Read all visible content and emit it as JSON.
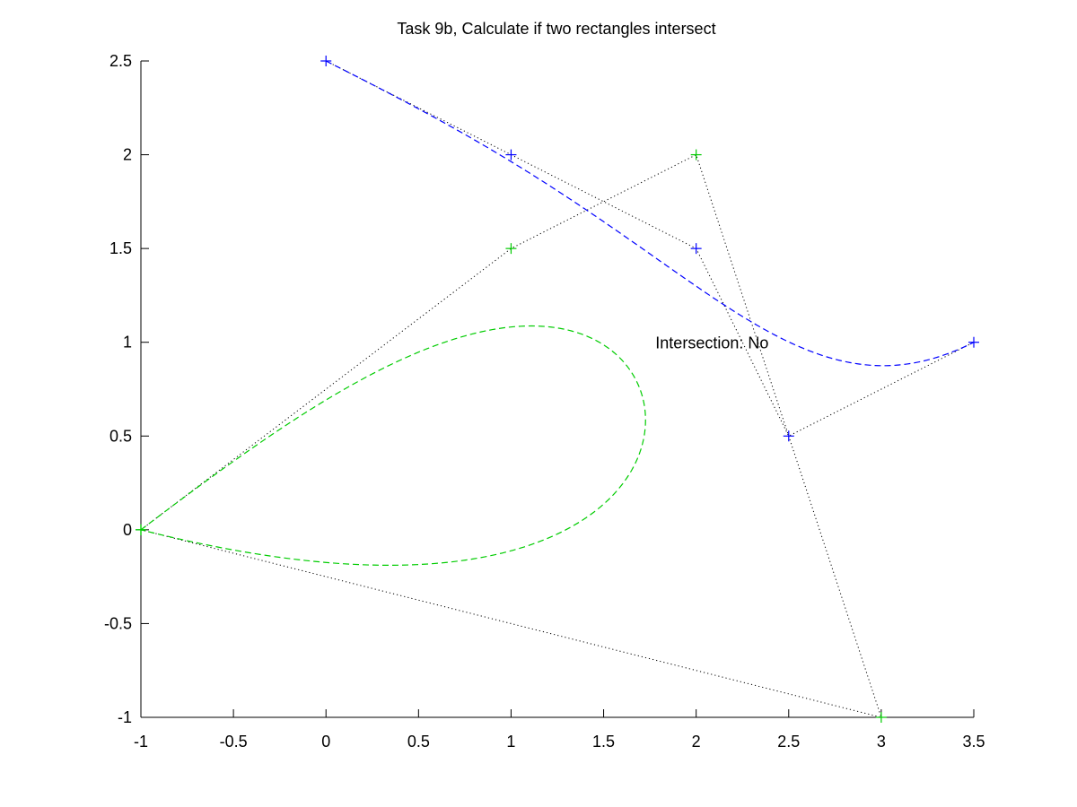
{
  "chart_data": {
    "type": "line",
    "title": "Task 9b, Calculate if two rectangles intersect",
    "xlabel": "",
    "ylabel": "",
    "xlim": [
      -1,
      3.5
    ],
    "ylim": [
      -1,
      2.5
    ],
    "xticks": [
      -1,
      -0.5,
      0,
      0.5,
      1,
      1.5,
      2,
      2.5,
      3,
      3.5
    ],
    "yticks": [
      -1,
      -0.5,
      0,
      0.5,
      1,
      1.5,
      2,
      2.5
    ],
    "xtick_labels": [
      "-1",
      "-0.5",
      "0",
      "0.5",
      "1",
      "1.5",
      "2",
      "2.5",
      "3",
      "3.5"
    ],
    "ytick_labels": [
      "-1",
      "-0.5",
      "0",
      "0.5",
      "1",
      "1.5",
      "2",
      "2.5"
    ],
    "grid": false,
    "series": [
      {
        "color": "#0000ff",
        "control_points": [
          [
            0,
            2.5
          ],
          [
            1,
            2
          ],
          [
            2,
            1.5
          ],
          [
            2.5,
            0.5
          ],
          [
            3.5,
            1
          ]
        ],
        "curve": "bezier",
        "curve_style": "dashed",
        "polygon_style": "dotted",
        "marker": "+"
      },
      {
        "color": "#00cc00",
        "control_points": [
          [
            -1,
            0
          ],
          [
            1,
            1.5
          ],
          [
            2,
            2
          ],
          [
            3,
            -1
          ],
          [
            -1,
            0
          ]
        ],
        "curve": "bezier",
        "curve_style": "dashed",
        "polygon_style": "dotted",
        "marker": "+"
      }
    ],
    "annotations": [
      {
        "text": "Intersection: No",
        "x": 1.78,
        "y": 1.0
      }
    ]
  }
}
